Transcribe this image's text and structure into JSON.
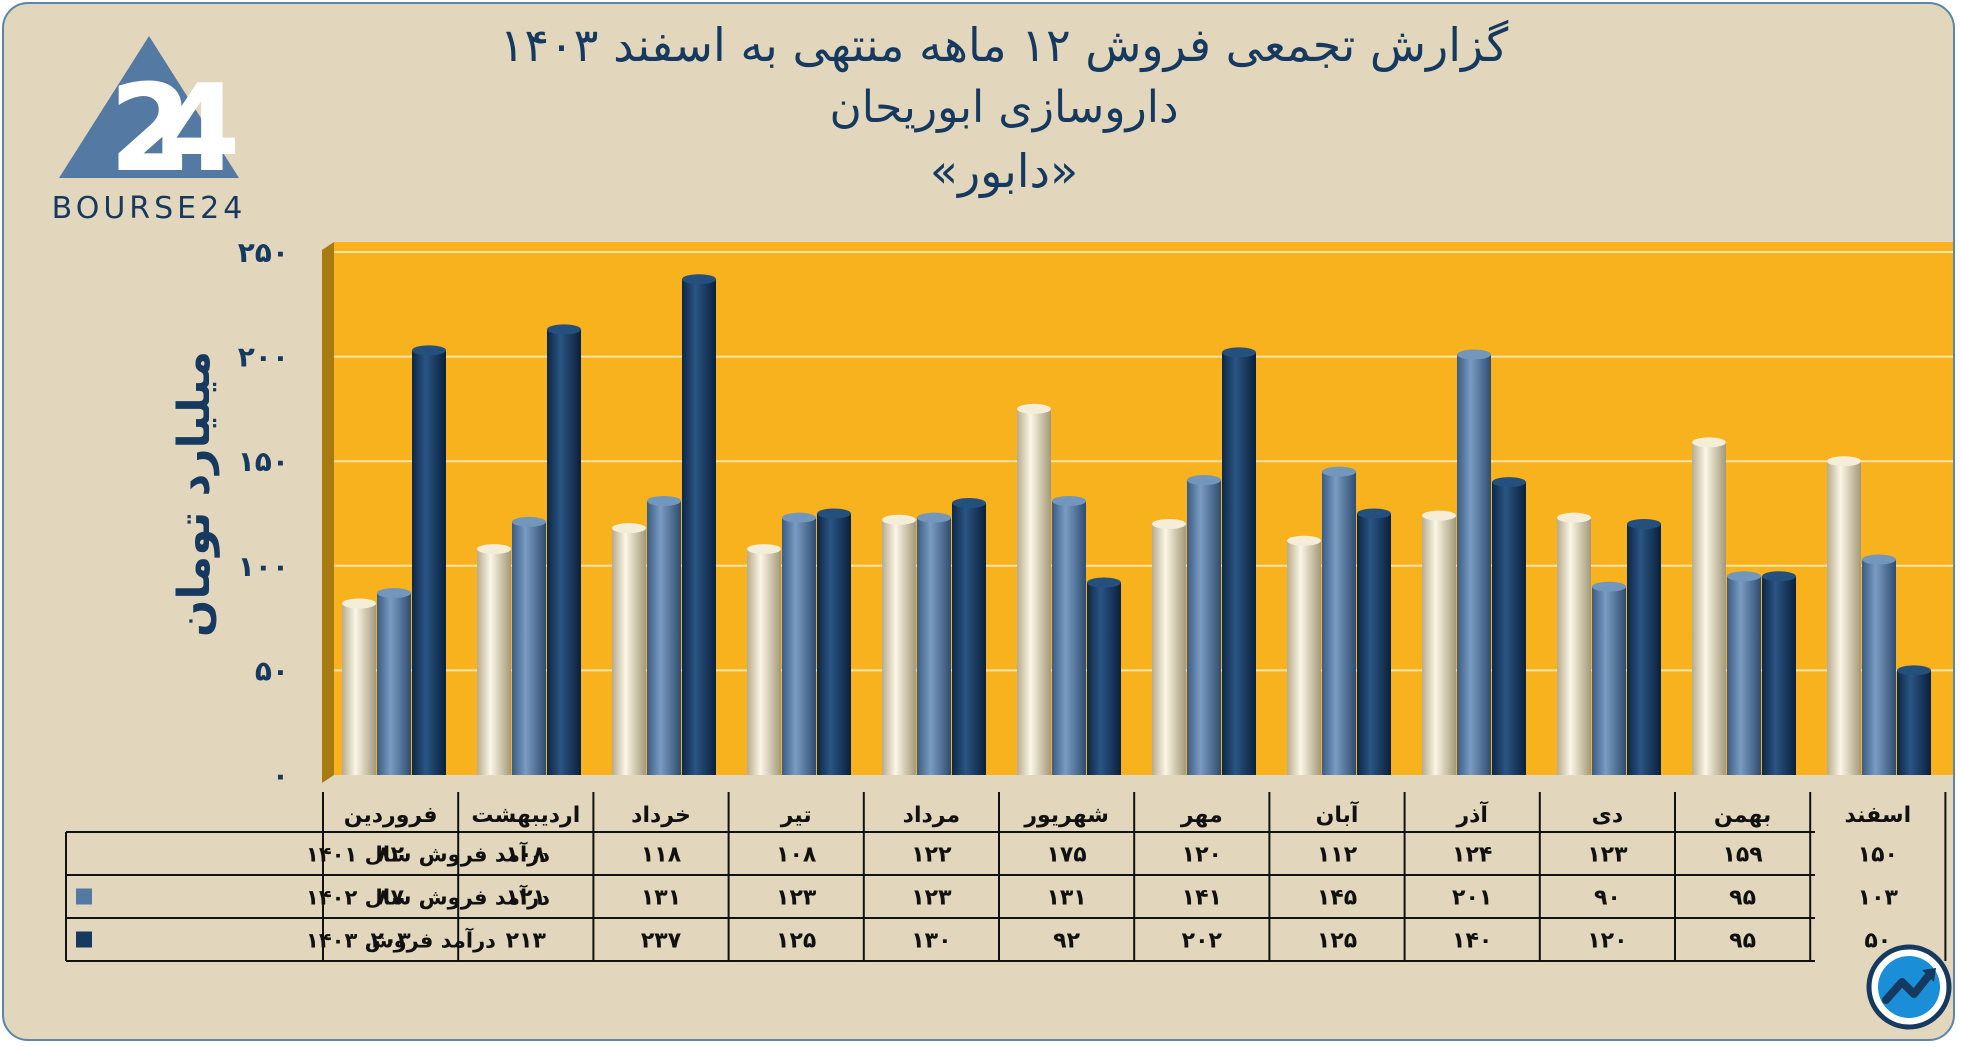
{
  "title": [
    "گزارش تجمعی فروش ۱۲ ماهه منتهی به اسفند ۱۴۰۳",
    "داروسازی ابوریحان",
    "«دابور»"
  ],
  "logo": {
    "text": "BOURSE24",
    "icon": "bourse24-logo-icon"
  },
  "corner_icon": "trend-arrow-icon",
  "colors": {
    "background": "#e2d7bd",
    "plot_bg": "#f7b21e",
    "s1401": "#e5dcc2",
    "s1402": "#5479a3",
    "s1403": "#163a5f",
    "text": "#163a5f"
  },
  "chart_data": {
    "type": "bar",
    "title": "گزارش تجمعی فروش ۱۲ ماهه منتهی به اسفند ۱۴۰۳ - داروسازی ابوریحان «دابور»",
    "ylabel": "میلیارد تومان",
    "xlabel": "",
    "ylim": [
      0,
      250
    ],
    "yticks": [
      0,
      50,
      100,
      150,
      200,
      250
    ],
    "ytick_labels": [
      "۰",
      "۵۰",
      "۱۰۰",
      "۱۵۰",
      "۲۰۰",
      "۲۵۰"
    ],
    "grid": true,
    "legend": "table-left",
    "categories": [
      "فروردین",
      "اردیبهشت",
      "خرداد",
      "تیر",
      "مرداد",
      "شهریور",
      "مهر",
      "آبان",
      "آذر",
      "دی",
      "بهمن",
      "اسفند"
    ],
    "series": [
      {
        "name": "درآمد فروش سال ۱۴۰۱",
        "color": "#e5dcc2",
        "values": [
          82,
          108,
          118,
          108,
          122,
          175,
          120,
          112,
          124,
          123,
          159,
          150
        ],
        "labels": [
          "۸۲",
          "۱۰۸",
          "۱۱۸",
          "۱۰۸",
          "۱۲۲",
          "۱۷۵",
          "۱۲۰",
          "۱۱۲",
          "۱۲۴",
          "۱۲۳",
          "۱۵۹",
          "۱۵۰"
        ]
      },
      {
        "name": "درآمد فروش سال ۱۴۰۲",
        "color": "#5479a3",
        "values": [
          87,
          121,
          131,
          123,
          123,
          131,
          141,
          145,
          201,
          90,
          95,
          103
        ],
        "labels": [
          "۸۷",
          "۱۲۱",
          "۱۳۱",
          "۱۲۳",
          "۱۲۳",
          "۱۳۱",
          "۱۴۱",
          "۱۴۵",
          "۲۰۱",
          "۹۰",
          "۹۵",
          "۱۰۳"
        ]
      },
      {
        "name": "درآمد فروش ۱۴۰۳",
        "color": "#163a5f",
        "values": [
          203,
          213,
          237,
          125,
          130,
          92,
          202,
          125,
          140,
          120,
          95,
          50
        ],
        "labels": [
          "۲۰۳",
          "۲۱۳",
          "۲۳۷",
          "۱۲۵",
          "۱۳۰",
          "۹۲",
          "۲۰۲",
          "۱۲۵",
          "۱۴۰",
          "۱۲۰",
          "۹۵",
          "۵۰"
        ]
      }
    ]
  }
}
